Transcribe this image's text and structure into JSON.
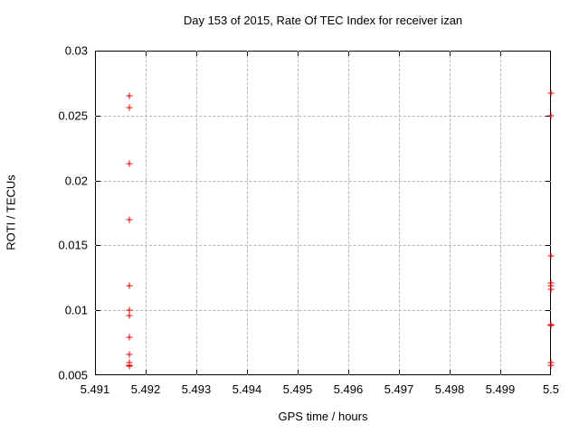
{
  "title": "Day 153 of 2015, Rate Of TEC Index for receiver izan",
  "chart_data": {
    "type": "scatter",
    "title": "Day 153 of 2015, Rate Of TEC Index for receiver izan",
    "xlabel": "GPS time / hours",
    "ylabel": "ROTI / TECUs",
    "xlim": [
      5.491,
      5.5
    ],
    "ylim": [
      0.005,
      0.03
    ],
    "xticks": [
      5.491,
      5.492,
      5.493,
      5.494,
      5.495,
      5.496,
      5.497,
      5.498,
      5.499,
      5.5
    ],
    "xtick_labels": [
      "5.491",
      "5.492",
      "5.493",
      "5.494",
      "5.495",
      "5.496",
      "5.497",
      "5.498",
      "5.499",
      "5.5"
    ],
    "yticks": [
      0.005,
      0.01,
      0.015,
      0.02,
      0.025,
      0.03
    ],
    "ytick_labels": [
      "0.005",
      "0.01",
      "0.015",
      "0.02",
      "0.025",
      "0.03"
    ],
    "grid": true,
    "legend": "none",
    "marker": "plus",
    "marker_color": "#e00000",
    "grid_color": "#b5b5b5",
    "axis_color": "#000000",
    "series": [
      {
        "name": "ROTI",
        "points": [
          [
            5.49167,
            0.0265
          ],
          [
            5.49167,
            0.0256
          ],
          [
            5.49167,
            0.0213
          ],
          [
            5.49167,
            0.017
          ],
          [
            5.49167,
            0.0119
          ],
          [
            5.49167,
            0.01
          ],
          [
            5.49167,
            0.0096
          ],
          [
            5.49167,
            0.0079
          ],
          [
            5.49167,
            0.0066
          ],
          [
            5.49167,
            0.006
          ],
          [
            5.49167,
            0.0058
          ],
          [
            5.49167,
            0.0057
          ],
          [
            5.5,
            0.0267
          ],
          [
            5.5,
            0.025
          ],
          [
            5.5,
            0.0142
          ],
          [
            5.5,
            0.0121
          ],
          [
            5.5,
            0.0119
          ],
          [
            5.5,
            0.0116
          ],
          [
            5.5,
            0.0089
          ],
          [
            5.5,
            0.0088
          ],
          [
            5.5,
            0.006
          ],
          [
            5.5,
            0.0058
          ]
        ]
      }
    ]
  }
}
